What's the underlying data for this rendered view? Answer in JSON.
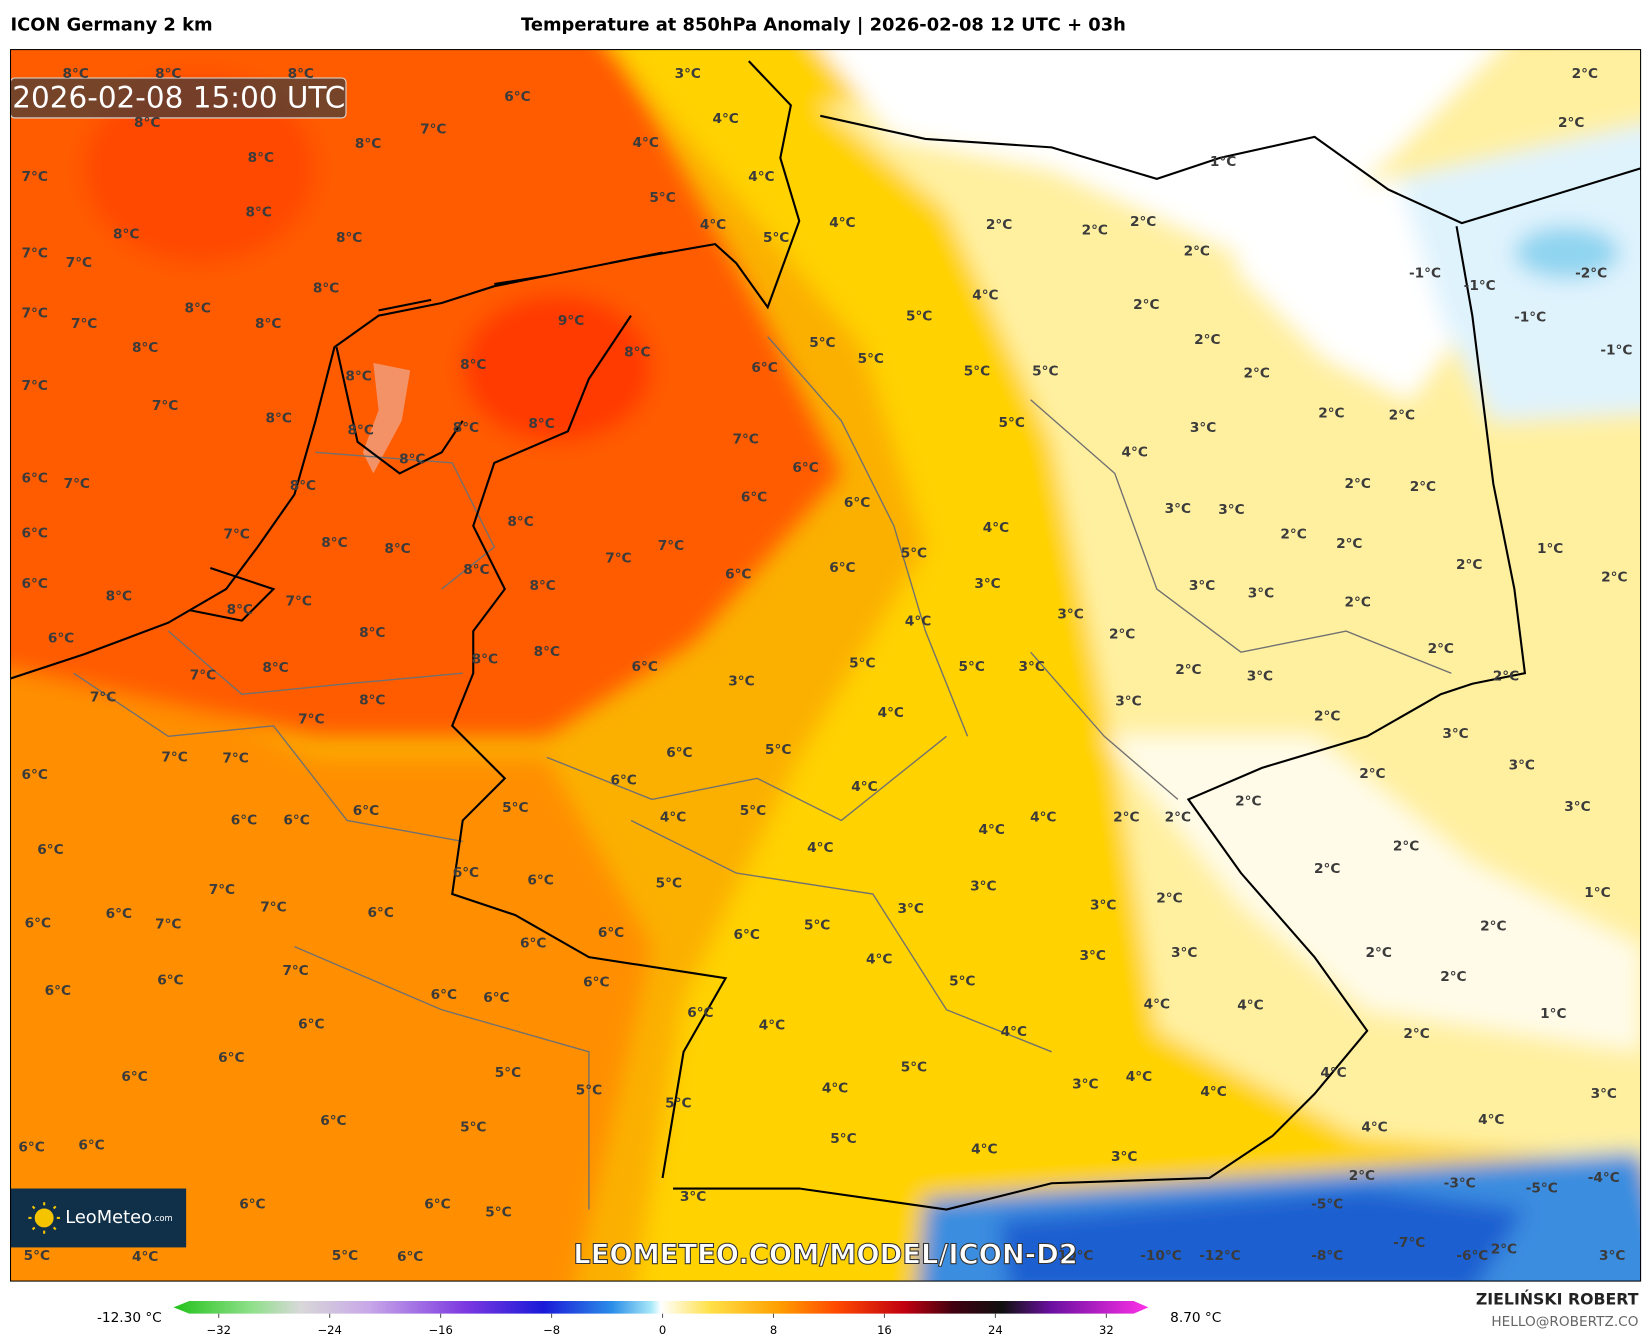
{
  "header": {
    "model": "ICON Germany 2 km",
    "title": "Temperature at 850hPa Anomaly | 2026-02-08 12 UTC + 03h"
  },
  "map": {
    "valid_time": "2026-02-08 15:00 UTC",
    "watermark": "LEOMETEO.COM/MODEL/ICON-D2",
    "logo": "LeoMeteo",
    "logo_suffix": ".com",
    "labels": [
      "8°C",
      "8°C",
      "8°C",
      "8°C",
      "8°C",
      "8°C",
      "8°C",
      "8°C",
      "8°C",
      "8°C",
      "8°C",
      "8°C",
      "8°C",
      "8°C",
      "8°C",
      "8°C",
      "8°C",
      "8°C",
      "8°C",
      "8°C",
      "8°C",
      "8°C",
      "8°C",
      "8°C",
      "8°C",
      "8°C",
      "8°C",
      "8°C",
      "8°C",
      "8°C",
      "8°C",
      "8°C",
      "8°C",
      "8°C",
      "9°C",
      "7°C",
      "7°C",
      "7°C",
      "7°C",
      "7°C",
      "7°C",
      "7°C",
      "7°C",
      "7°C",
      "7°C",
      "7°C",
      "7°C",
      "7°C",
      "7°C",
      "7°C",
      "7°C",
      "7°C",
      "7°C",
      "7°C",
      "7°C",
      "7°C",
      "7°C",
      "7°C",
      "6°C",
      "6°C",
      "6°C",
      "6°C",
      "6°C",
      "6°C",
      "6°C",
      "6°C",
      "6°C",
      "6°C",
      "6°C",
      "6°C",
      "6°C",
      "6°C",
      "6°C",
      "6°C",
      "6°C",
      "6°C",
      "6°C",
      "6°C",
      "6°C",
      "6°C",
      "6°C",
      "6°C",
      "6°C",
      "6°C",
      "6°C",
      "6°C",
      "6°C",
      "6°C",
      "6°C",
      "6°C",
      "6°C",
      "6°C",
      "6°C",
      "6°C",
      "6°C",
      "6°C",
      "6°C",
      "6°C",
      "6°C",
      "6°C",
      "6°C",
      "5°C",
      "5°C",
      "5°C",
      "5°C",
      "5°C",
      "5°C",
      "5°C",
      "5°C",
      "5°C",
      "5°C",
      "5°C",
      "5°C",
      "5°C",
      "5°C",
      "5°C",
      "5°C",
      "5°C",
      "5°C",
      "5°C",
      "5°C",
      "5°C",
      "5°C",
      "5°C",
      "5°C",
      "5°C",
      "5°C",
      "4°C",
      "4°C",
      "4°C",
      "4°C",
      "4°C",
      "4°C",
      "4°C",
      "4°C",
      "4°C",
      "4°C",
      "4°C",
      "4°C",
      "4°C",
      "4°C",
      "4°C",
      "4°C",
      "4°C",
      "4°C",
      "4°C",
      "4°C",
      "4°C",
      "4°C",
      "4°C",
      "4°C",
      "4°C",
      "4°C",
      "4°C",
      "4°C",
      "3°C",
      "3°C",
      "3°C",
      "3°C",
      "3°C",
      "3°C",
      "3°C",
      "3°C",
      "3°C",
      "3°C",
      "3°C",
      "3°C",
      "3°C",
      "3°C",
      "3°C",
      "3°C",
      "3°C",
      "3°C",
      "3°C",
      "3°C",
      "3°C",
      "3°C",
      "3°C",
      "3°C",
      "3°C",
      "2°C",
      "2°C",
      "2°C",
      "2°C",
      "2°C",
      "2°C",
      "2°C",
      "2°C",
      "2°C",
      "2°C",
      "2°C",
      "2°C",
      "2°C",
      "2°C",
      "2°C",
      "2°C",
      "2°C",
      "2°C",
      "2°C",
      "2°C",
      "2°C",
      "2°C",
      "2°C",
      "2°C",
      "2°C",
      "2°C",
      "2°C",
      "2°C",
      "2°C",
      "2°C",
      "2°C",
      "2°C",
      "2°C",
      "2°C",
      "2°C",
      "2°C",
      "1°C",
      "1°C",
      "1°C",
      "1°C",
      "-1°C",
      "-1°C",
      "-1°C",
      "-1°C",
      "-2°C",
      "-5°C",
      "-7°C",
      "-8°C",
      "-10°C",
      "-12°C",
      "-6°C",
      "-5°C",
      "-4°C",
      "-3°C",
      "-10°C"
    ]
  },
  "colorbar": {
    "min_label": "-12.30 °C",
    "max_label": "8.70 °C",
    "ticks": [
      {
        "value": -32,
        "label": "−32"
      },
      {
        "value": -24,
        "label": "−24"
      },
      {
        "value": -16,
        "label": "−16"
      },
      {
        "value": -8,
        "label": "−8"
      },
      0,
      8,
      16,
      24,
      32
    ]
  },
  "footer": {
    "author": "ZIELIŃSKI ROBERT",
    "contact": "HELLO@ROBERTZ.CO"
  }
}
